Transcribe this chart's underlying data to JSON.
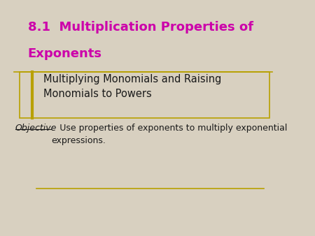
{
  "background_color": "#d8d0c0",
  "title_line1": "8.1  Multiplication Properties of",
  "title_line2": "Exponents",
  "title_color": "#cc00aa",
  "subtitle": "Multiplying Monomials and Raising\nMonomials to Powers",
  "subtitle_color": "#1a1a1a",
  "objective_label": "Objective",
  "objective_text": ":  Use properties of exponents to multiply exponential\nexpressions.",
  "objective_color": "#1a1a1a",
  "line_color": "#b8a000",
  "box_border_color": "#b8a000",
  "box_left_bar_color": "#b8a000"
}
